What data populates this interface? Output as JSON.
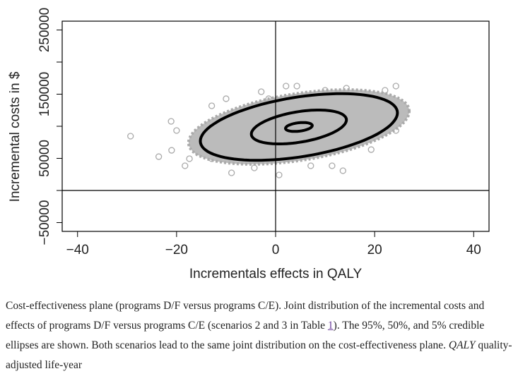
{
  "chart_data": {
    "type": "scatter",
    "x_label": "Incrementals effects in QALY",
    "y_label": "Incremental costs in $",
    "xlim": [
      -43.1,
      43.1
    ],
    "ylim": [
      -63700,
      263700
    ],
    "xticks": [
      {
        "value": -40,
        "label": "−40"
      },
      {
        "value": -20,
        "label": "−20"
      },
      0,
      20,
      40
    ],
    "yticks": [
      {
        "value": -50000,
        "label": "−50000"
      },
      50000,
      150000,
      250000
    ],
    "yticks_minor": [
      0,
      100000,
      200000
    ],
    "hlines": [
      0
    ],
    "vlines": [
      0
    ],
    "point_color": "#aaaaaa",
    "x": [
      -29.3,
      -23.6,
      -21.1,
      -20,
      -21,
      -18.3,
      -17.4,
      -15.7,
      -12.9,
      -10,
      -8.9,
      -2.9,
      2.1,
      4.3,
      10,
      14.3,
      22.1,
      24.3,
      25,
      24.3,
      19.3,
      13.6,
      11.4,
      0.7,
      -4.3,
      -12.9,
      -14.3,
      18.6,
      7.1,
      -1.4
    ],
    "y": [
      84600,
      52700,
      107700,
      93400,
      62600,
      38500,
      49500,
      60400,
      131900,
      142900,
      27500,
      153800,
      162600,
      162600,
      156000,
      159300,
      156000,
      162600,
      120900,
      93400,
      63700,
      30800,
      38500,
      24200,
      35200,
      49500,
      82400,
      140700,
      38500,
      142900
    ],
    "cloud_color": "#bbbbbb",
    "ellipse_color": "#000000",
    "ellipses": [
      {
        "center": [
          4.7,
          98900
        ],
        "a": [
          19.9,
          22000
        ],
        "b": [
          0,
          47000
        ]
      },
      {
        "center": [
          4.7,
          98900
        ],
        "a": [
          9.6,
          11000
        ],
        "b": [
          0,
          24000
        ]
      },
      {
        "center": [
          4.7,
          98900
        ],
        "a": [
          2.7,
          2200
        ],
        "b": [
          0,
          6600
        ]
      }
    ]
  },
  "caption": {
    "text1": "Cost-effectiveness plane (programs D/F versus programs C/E). Joint distribution of the incremental costs and effects of programs D/F versus programs C/E (scenarios 2 and 3 in Table ",
    "link": "1",
    "text2": "). The 95%, 50%, and 5% credible ellipses are shown. Both scenarios lead to the same joint distribution on the cost-effectiveness plane. ",
    "italic": "QALY",
    "text3": " quality-adjusted life-year"
  }
}
